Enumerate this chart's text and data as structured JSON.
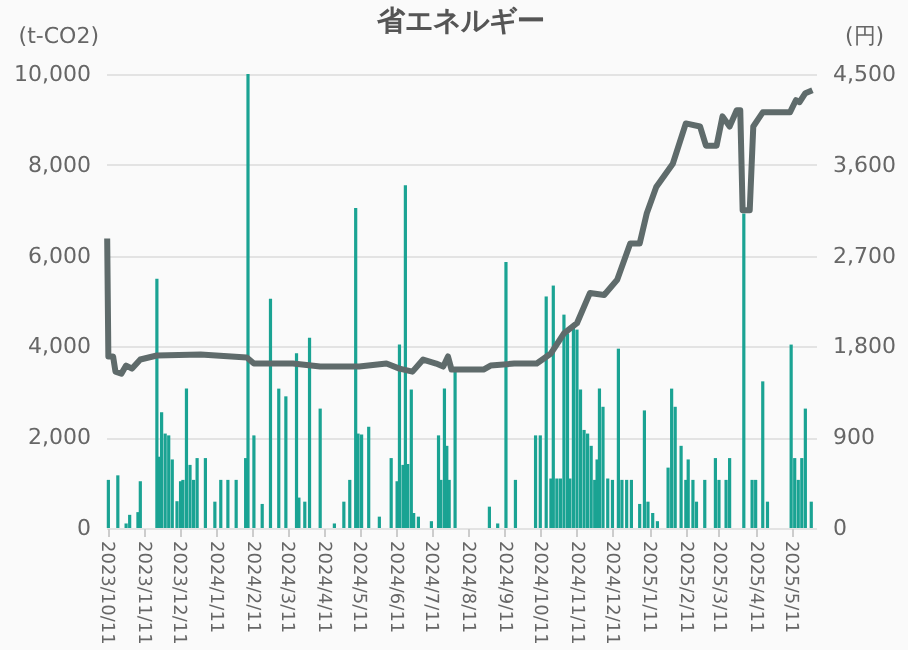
{
  "chart_data": {
    "type": "bar",
    "title": "省エネルギー",
    "ylabel": "(t-CO2)",
    "y2label": "(円)",
    "xlim": [
      "2023-10-10",
      "2025-06-01"
    ],
    "xticks": [
      {
        "value": "2023-10-11",
        "label": "2023/10/11"
      },
      {
        "value": "2023-11-11",
        "label": "2023/11/11"
      },
      {
        "value": "2023-12-11",
        "label": "2023/12/11"
      },
      {
        "value": "2024-01-11",
        "label": "2024/1/11"
      },
      {
        "value": "2024-02-11",
        "label": "2024/2/11"
      },
      {
        "value": "2024-03-11",
        "label": "2024/3/11"
      },
      {
        "value": "2024-04-11",
        "label": "2024/4/11"
      },
      {
        "value": "2024-05-11",
        "label": "2024/5/11"
      },
      {
        "value": "2024-06-11",
        "label": "2024/6/11"
      },
      {
        "value": "2024-07-11",
        "label": "2024/7/11"
      },
      {
        "value": "2024-08-11",
        "label": "2024/8/11"
      },
      {
        "value": "2024-09-11",
        "label": "2024/9/11"
      },
      {
        "value": "2024-10-11",
        "label": "2024/10/11"
      },
      {
        "value": "2024-11-11",
        "label": "2024/11/11"
      },
      {
        "value": "2024-12-11",
        "label": "2024/12/11"
      },
      {
        "value": "2025-01-11",
        "label": "2025/1/11"
      },
      {
        "value": "2025-02-11",
        "label": "2025/2/11"
      },
      {
        "value": "2025-03-11",
        "label": "2025/3/11"
      },
      {
        "value": "2025-04-11",
        "label": "2025/4/11"
      },
      {
        "value": "2025-05-11",
        "label": "2025/5/11"
      }
    ],
    "ylim": [
      0,
      10000
    ],
    "yticks": [
      0,
      {
        "value": 2000,
        "label": "2,000"
      },
      {
        "value": 4000,
        "label": "4,000"
      },
      {
        "value": 6000,
        "label": "6,000"
      },
      {
        "value": 8000,
        "label": "8,000"
      },
      {
        "value": 10000,
        "label": "10,000"
      }
    ],
    "y2lim": [
      0,
      4500
    ],
    "y2ticks": [
      0,
      900,
      {
        "value": 1800,
        "label": "1,800"
      },
      {
        "value": 2700,
        "label": "2,700"
      },
      {
        "value": 3600,
        "label": "3,600"
      },
      {
        "value": 4500,
        "label": "4,500"
      }
    ],
    "grid": "y",
    "series": [
      {
        "color": "#1aa393",
        "x": [
          "2023-10-12",
          "2023-10-20",
          "2023-10-27",
          "2023-10-30",
          "2023-11-06",
          "2023-11-08",
          "2023-11-22",
          "2023-11-24",
          "2023-11-26",
          "2023-11-29",
          "2023-12-02",
          "2023-12-05",
          "2023-12-09",
          "2023-12-12",
          "2023-12-14",
          "2023-12-17",
          "2023-12-20",
          "2023-12-23",
          "2023-12-26",
          "2024-01-02",
          "2024-01-10",
          "2024-01-15",
          "2024-01-21",
          "2024-01-28",
          "2024-02-05",
          "2024-02-07",
          "2024-02-12",
          "2024-02-19",
          "2024-02-26",
          "2024-03-04",
          "2024-03-10",
          "2024-03-19",
          "2024-03-21",
          "2024-03-26",
          "2024-03-30",
          "2024-04-08",
          "2024-04-20",
          "2024-04-28",
          "2024-05-03",
          "2024-05-08",
          "2024-05-10",
          "2024-05-13",
          "2024-05-19",
          "2024-05-28",
          "2024-06-07",
          "2024-06-12",
          "2024-06-14",
          "2024-06-17",
          "2024-06-19",
          "2024-06-21",
          "2024-06-24",
          "2024-06-26",
          "2024-06-30",
          "2024-07-11",
          "2024-07-17",
          "2024-07-19",
          "2024-07-22",
          "2024-07-24",
          "2024-07-26",
          "2024-07-31",
          "2024-08-29",
          "2024-09-05",
          "2024-09-12",
          "2024-09-20",
          "2024-10-07",
          "2024-10-11",
          "2024-10-16",
          "2024-10-20",
          "2024-10-22",
          "2024-10-25",
          "2024-10-28",
          "2024-10-31",
          "2024-11-03",
          "2024-11-05",
          "2024-11-08",
          "2024-11-11",
          "2024-11-14",
          "2024-11-17",
          "2024-11-20",
          "2024-11-23",
          "2024-11-26",
          "2024-11-28",
          "2024-11-30",
          "2024-12-03",
          "2024-12-07",
          "2024-12-11",
          "2024-12-16",
          "2024-12-19",
          "2024-12-23",
          "2024-12-27",
          "2025-01-03",
          "2025-01-07",
          "2025-01-10",
          "2025-01-14",
          "2025-01-18",
          "2025-01-27",
          "2025-01-30",
          "2025-02-02",
          "2025-02-07",
          "2025-02-11",
          "2025-02-13",
          "2025-02-17",
          "2025-02-20",
          "2025-02-27",
          "2025-03-08",
          "2025-03-11",
          "2025-03-17",
          "2025-03-20",
          "2025-04-01",
          "2025-04-08",
          "2025-04-11",
          "2025-04-17",
          "2025-04-21",
          "2025-05-11",
          "2025-05-14",
          "2025-05-17",
          "2025-05-20",
          "2025-05-23",
          "2025-05-28"
        ],
        "values": [
          1060,
          1160,
          100,
          290,
          350,
          1030,
          5490,
          1570,
          2550,
          2080,
          2040,
          1510,
          590,
          1030,
          1060,
          3070,
          1390,
          1060,
          1540,
          1540,
          580,
          1060,
          1060,
          1060,
          1540,
          10000,
          2040,
          530,
          5050,
          3070,
          2900,
          3850,
          670,
          580,
          4190,
          2630,
          100,
          580,
          1060,
          7050,
          2080,
          2060,
          2230,
          250,
          1540,
          1030,
          4040,
          1390,
          7550,
          1410,
          3050,
          330,
          250,
          150,
          2040,
          1060,
          3070,
          1810,
          1060,
          3450,
          470,
          100,
          5860,
          1060,
          2040,
          2040,
          5100,
          1090,
          5340,
          1090,
          1090,
          4700,
          4290,
          1090,
          4430,
          4370,
          3050,
          2160,
          2080,
          1810,
          1060,
          1510,
          3070,
          2670,
          1090,
          1060,
          3950,
          1060,
          1060,
          1060,
          530,
          2590,
          580,
          330,
          150,
          1330,
          3070,
          2670,
          1810,
          1060,
          1510,
          1060,
          580,
          1060,
          1540,
          1060,
          1060,
          1540,
          6930,
          1060,
          1060,
          3230,
          580,
          4040,
          1540,
          1060,
          1540,
          2630,
          580
        ]
      },
      {
        "type": "line",
        "axis": "y2",
        "color": "#5f6b6b",
        "x": [
          "2023-10-11",
          "2023-10-12",
          "2023-10-16",
          "2023-10-18",
          "2023-10-23",
          "2023-10-27",
          "2023-11-01",
          "2023-11-08",
          "2023-11-22",
          "2023-12-29",
          "2024-02-06",
          "2024-02-12",
          "2024-03-16",
          "2024-04-08",
          "2024-05-11",
          "2024-06-03",
          "2024-06-14",
          "2024-06-25",
          "2024-07-04",
          "2024-07-15",
          "2024-07-21",
          "2024-07-25",
          "2024-07-28",
          "2024-08-05",
          "2024-08-24",
          "2024-08-30",
          "2024-09-19",
          "2024-10-08",
          "2024-10-20",
          "2024-10-31",
          "2024-11-11",
          "2024-11-22",
          "2024-12-04",
          "2024-12-15",
          "2024-12-26",
          "2025-01-03",
          "2025-01-09",
          "2025-01-17",
          "2025-01-31",
          "2025-02-11",
          "2025-02-23",
          "2025-02-28",
          "2025-03-09",
          "2025-03-14",
          "2025-03-20",
          "2025-03-26",
          "2025-03-29",
          "2025-03-31",
          "2025-04-06",
          "2025-04-09",
          "2025-04-17",
          "2025-05-10",
          "2025-05-15",
          "2025-05-18",
          "2025-05-23",
          "2025-05-29"
        ],
        "values": [
          2870,
          1700,
          1700,
          1550,
          1530,
          1610,
          1580,
          1670,
          1710,
          1720,
          1690,
          1630,
          1630,
          1600,
          1600,
          1630,
          1580,
          1550,
          1670,
          1630,
          1600,
          1700,
          1570,
          1570,
          1570,
          1610,
          1630,
          1630,
          1730,
          1930,
          2030,
          2330,
          2310,
          2460,
          2820,
          2820,
          3120,
          3380,
          3610,
          4010,
          3980,
          3790,
          3790,
          4080,
          3980,
          4140,
          4140,
          3150,
          3150,
          3980,
          4120,
          4120,
          4240,
          4220,
          4310,
          4340
        ]
      }
    ]
  }
}
